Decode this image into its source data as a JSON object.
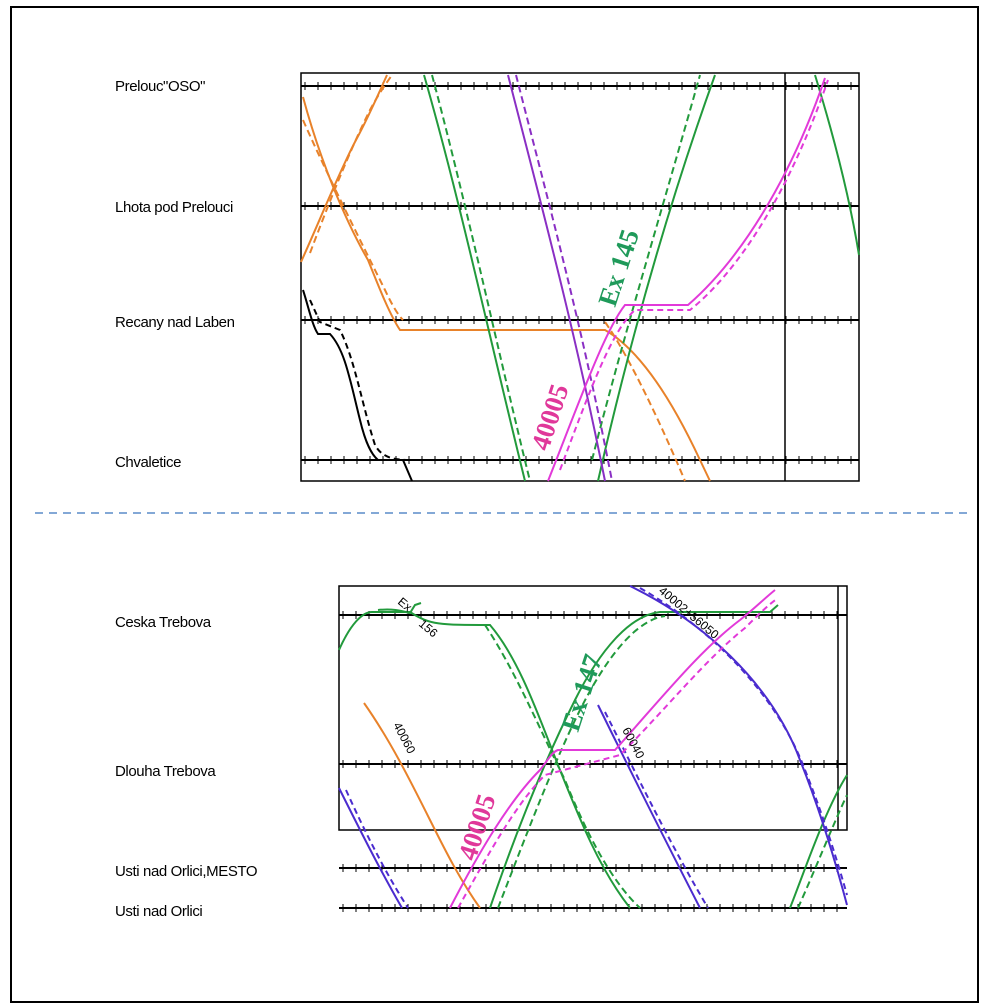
{
  "colors": {
    "orange": "#e8822a",
    "green": "#229a3c",
    "purple": "#8a2fc4",
    "magenta": "#e23ad9",
    "black": "#000000",
    "blue": "#4b2ccf",
    "label_green": "#1f9a5a",
    "label_magenta": "#e0389a",
    "divider": "#5a8cc8"
  },
  "top": {
    "stations": [
      "Prelouc\"OSO\"",
      "Lhota pod Prelouci",
      "Recany nad Laben",
      "Chvaletice"
    ],
    "labels": {
      "ex": "Ex 145",
      "train": "40005"
    }
  },
  "bottom": {
    "stations": [
      "Ceska Trebova",
      "Dlouha Trebova",
      "Usti nad Orlici,MESTO",
      "Usti nad Orlici"
    ],
    "labels": {
      "ex": "Ex 147",
      "train": "40005"
    },
    "small_labels": [
      "Ex",
      "156",
      "40060",
      "40002+56050",
      "60040"
    ]
  }
}
